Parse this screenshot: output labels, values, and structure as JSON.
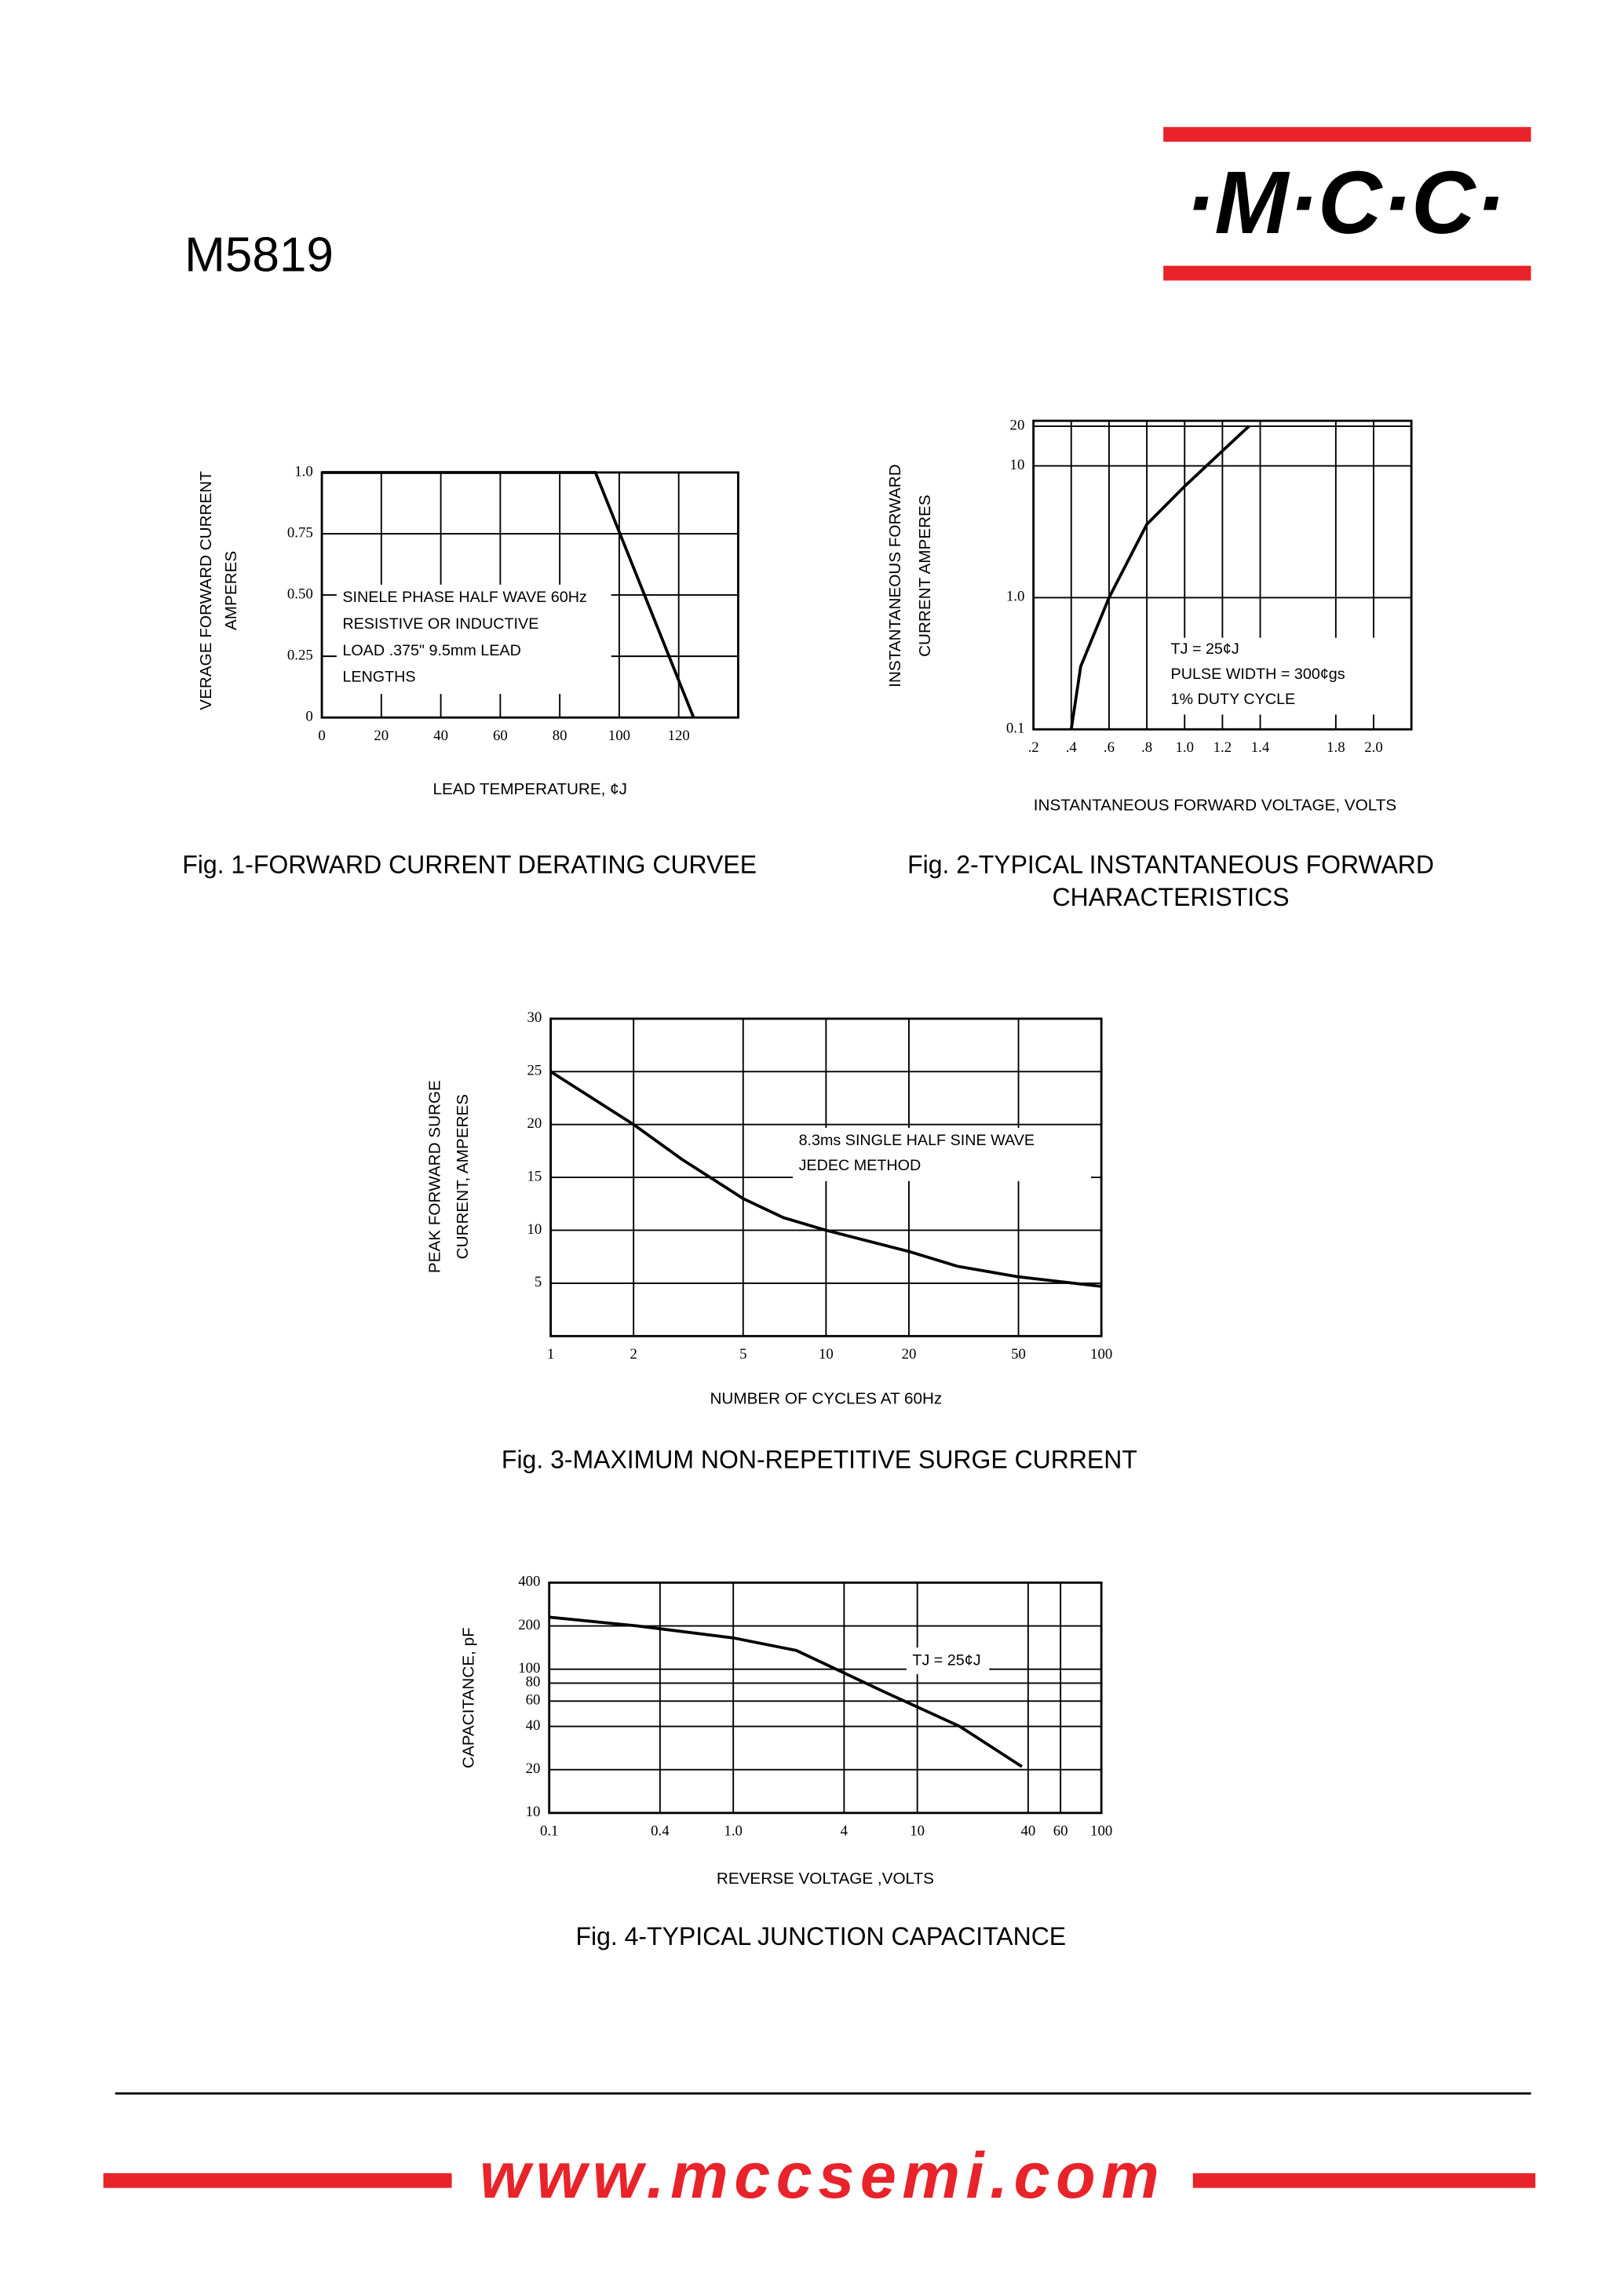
{
  "header": {
    "title": "M5819",
    "logo": "·M·C·C·"
  },
  "chart_data": [
    {
      "type": "line",
      "title": "Fig. 1-FORWARD CURRENT DERATING CURVEE",
      "ylabel": [
        "VERAGE FORWARD CURRENT",
        "AMPERES"
      ],
      "xlabel": "LEAD TEMPERATURE, ¢J",
      "annotations": [
        "SINELE PHASE HALF WAVE 60Hz",
        "RESISTIVE OR INDUCTIVE",
        "LOAD .375\" 9.5mm LEAD",
        "LENGTHS"
      ],
      "x": [
        0,
        92,
        125
      ],
      "series": [
        {
          "color": "#000000",
          "values": [
            1,
            1,
            0
          ]
        }
      ],
      "xlim": [
        0,
        140
      ],
      "xticks": [
        0,
        20,
        40,
        60,
        80,
        100,
        120
      ],
      "ylim": [
        0,
        1
      ],
      "yticks": [
        0,
        0.25,
        {
          "value": 0.5,
          "label": "0.50"
        },
        0.75,
        {
          "value": 1,
          "label": "1.0"
        }
      ],
      "xscale": "linear",
      "yscale": "linear",
      "grid": true
    },
    {
      "type": "line",
      "title": [
        "Fig. 2-TYPICAL INSTANTANEOUS FORWARD",
        "CHARACTERISTICS"
      ],
      "ylabel": [
        "INSTANTANEOUS FORWARD",
        "CURRENT AMPERES"
      ],
      "xlabel": "INSTANTANEOUS FORWARD VOLTAGE, VOLTS",
      "annotations": [
        "TJ = 25¢J",
        "PULSE WIDTH = 300¢gs",
        "1% DUTY CYCLE"
      ],
      "x": [
        0.4,
        0.45,
        0.6,
        0.8,
        1.0,
        1.2,
        1.34
      ],
      "series": [
        {
          "color": "#000000",
          "values": [
            0.1,
            0.3,
            1.0,
            3.6,
            7,
            13,
            20
          ]
        }
      ],
      "xlim": [
        0.2,
        2.2
      ],
      "xticks": [
        {
          "value": 0.2,
          "label": ".2"
        },
        {
          "value": 0.4,
          "label": ".4"
        },
        {
          "value": 0.6,
          "label": ".6"
        },
        {
          "value": 0.8,
          "label": ".8"
        },
        {
          "value": 1,
          "label": "1.0"
        },
        1.2,
        1.4,
        1.8,
        {
          "value": 2,
          "label": "2.0"
        }
      ],
      "ylim": [
        0.1,
        22
      ],
      "yticks": [
        0.1,
        {
          "value": 1,
          "label": "1.0"
        },
        10,
        20
      ],
      "xscale": "linear",
      "yscale": "log",
      "grid": true
    },
    {
      "type": "line",
      "title": "Fig. 3-MAXIMUM NON-REPETITIVE SURGE CURRENT",
      "ylabel": [
        "PEAK FORWARD SURGE",
        "CURRENT, AMPERES"
      ],
      "xlabel": "NUMBER OF CYCLES AT 60Hz",
      "annotations": [
        "8.3ms SINGLE HALF SINE WAVE",
        "JEDEC METHOD"
      ],
      "x": [
        1,
        2,
        3,
        5,
        7,
        10,
        20,
        30,
        50,
        100
      ],
      "series": [
        {
          "color": "#000000",
          "values": [
            25,
            20,
            16.7,
            13,
            11.2,
            10,
            8,
            6.6,
            5.6,
            4.7
          ]
        }
      ],
      "xlim": [
        1,
        100
      ],
      "xticks": [
        1,
        2,
        5,
        10,
        20,
        50,
        100
      ],
      "ylim": [
        0,
        30
      ],
      "yticks": [
        5,
        10,
        15,
        20,
        25,
        30
      ],
      "xscale": "log",
      "yscale": "linear",
      "grid": true
    },
    {
      "type": "line",
      "title": "Fig. 4-TYPICAL JUNCTION CAPACITANCE",
      "ylabel": [
        "CAPACITANCE, pF"
      ],
      "xlabel": "REVERSE VOLTAGE ,VOLTS",
      "annotations": [
        "TJ = 25¢J"
      ],
      "x": [
        0.1,
        0.3,
        1,
        2.2,
        6.7,
        17,
        37
      ],
      "series": [
        {
          "color": "#000000",
          "values": [
            230,
            200,
            165,
            135,
            69,
            40,
            21
          ]
        }
      ],
      "xlim": [
        0.1,
        100
      ],
      "xticks": [
        0.1,
        0.4,
        {
          "value": 1,
          "label": "1.0"
        },
        4,
        10,
        40,
        60,
        100
      ],
      "ylim": [
        10,
        400
      ],
      "yticks": [
        10,
        20,
        40,
        60,
        80,
        100,
        200,
        400
      ],
      "xscale": "log",
      "yscale": "log",
      "grid": true
    }
  ],
  "footer": {
    "url": "www.mccsemi.com"
  }
}
